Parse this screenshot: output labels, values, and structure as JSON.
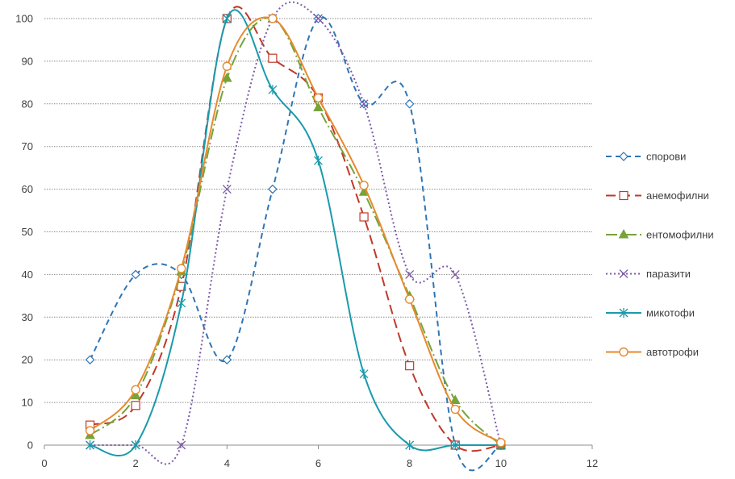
{
  "chart_data": {
    "type": "scatter",
    "title": "",
    "xlabel": "",
    "ylabel": "",
    "xlim": [
      0,
      12
    ],
    "ylim": [
      0,
      100
    ],
    "x_ticks": [
      0,
      2,
      4,
      6,
      8,
      10,
      12
    ],
    "y_ticks": [
      0,
      10,
      20,
      30,
      40,
      50,
      60,
      70,
      80,
      90,
      100
    ],
    "grid": "horizontal dotted",
    "legend_position": "right",
    "series": [
      {
        "name": "спорови",
        "color": "#2E75B6",
        "dash": "dashed",
        "marker": "diamond",
        "x": [
          1,
          2,
          3,
          4,
          5,
          6,
          7,
          8,
          9,
          10
        ],
        "y": [
          20,
          40,
          40,
          20,
          60,
          100,
          80,
          80,
          0,
          0
        ]
      },
      {
        "name": "анемофилни",
        "color": "#C0392B",
        "dash": "longdash",
        "marker": "square",
        "x": [
          1,
          2,
          3,
          4,
          5,
          6,
          7,
          8,
          9,
          10
        ],
        "y": [
          4.7,
          9.3,
          37.2,
          100,
          90.7,
          81.4,
          53.5,
          18.6,
          0,
          0
        ]
      },
      {
        "name": "ентомофилни",
        "color": "#77A33A",
        "dash": "dashdot",
        "marker": "triangle",
        "x": [
          1,
          2,
          3,
          4,
          5,
          6,
          7,
          8,
          9,
          10
        ],
        "y": [
          2.3,
          11.6,
          40.7,
          86,
          100,
          79.1,
          59.3,
          34.9,
          10.5,
          0
        ]
      },
      {
        "name": "паразити",
        "color": "#7B5BA6",
        "dash": "dotted",
        "marker": "x",
        "x": [
          1,
          2,
          3,
          4,
          5,
          6,
          7,
          8,
          9,
          10
        ],
        "y": [
          0,
          0,
          0,
          60,
          100,
          100,
          80,
          40,
          40,
          0
        ]
      },
      {
        "name": "микотофи",
        "color": "#1A9AAB",
        "dash": "solid",
        "marker": "star",
        "x": [
          1,
          2,
          3,
          4,
          5,
          6,
          7,
          8,
          9,
          10
        ],
        "y": [
          0,
          0,
          33.3,
          100,
          83.3,
          66.7,
          16.7,
          0,
          0,
          0
        ]
      },
      {
        "name": "автотрофи",
        "color": "#E68A2E",
        "dash": "solid",
        "marker": "circle",
        "x": [
          1,
          2,
          3,
          4,
          5,
          6,
          7,
          8,
          9,
          10
        ],
        "y": [
          3.4,
          13,
          41.4,
          88.8,
          100,
          81.4,
          60.9,
          34.2,
          8.4,
          0.6
        ]
      }
    ]
  }
}
